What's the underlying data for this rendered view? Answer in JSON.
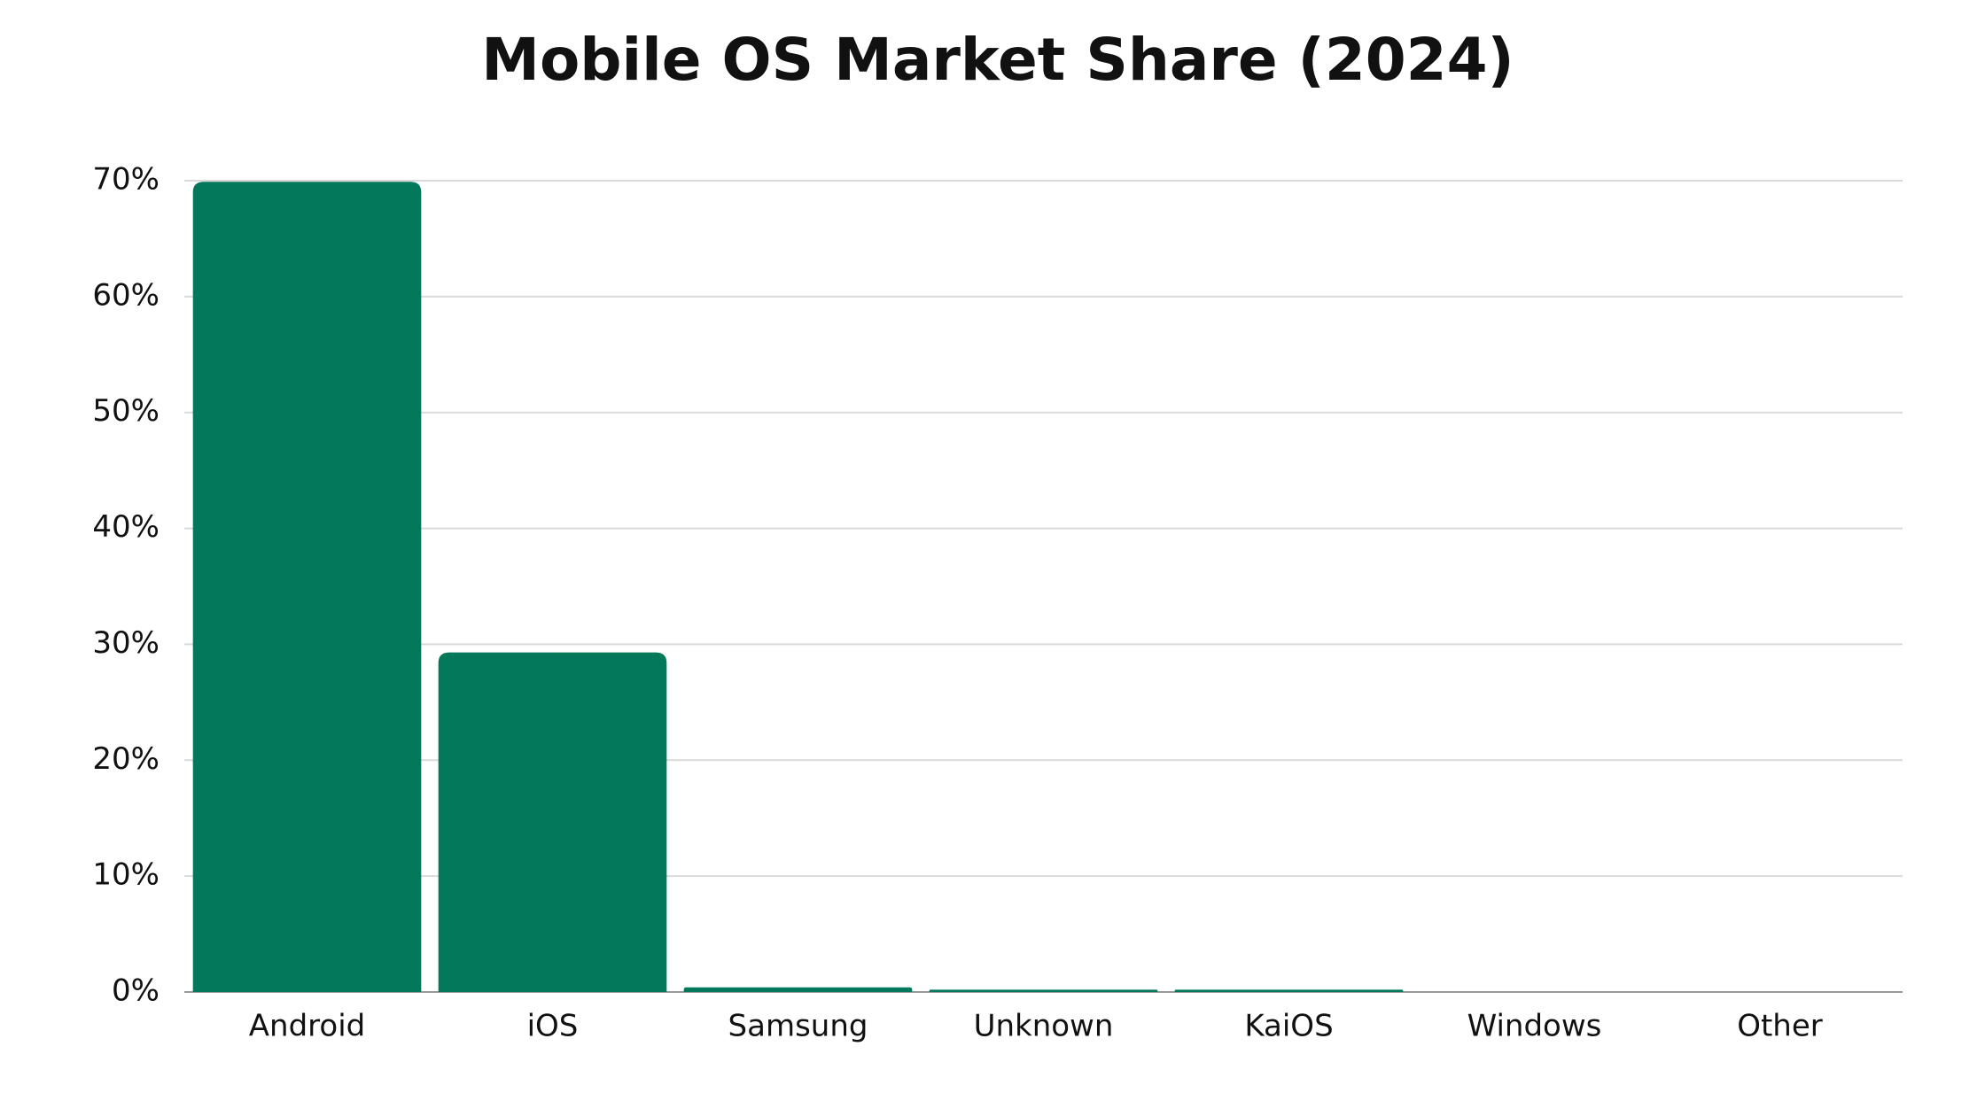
{
  "chart_data": {
    "type": "bar",
    "title": "Mobile OS Market Share (2024)",
    "categories": [
      "Android",
      "iOS",
      "Samsung",
      "Unknown",
      "KaiOS",
      "Windows",
      "Other"
    ],
    "values": [
      69.9,
      29.3,
      0.4,
      0.2,
      0.2,
      0,
      0
    ],
    "color": "#03785a",
    "ylim": [
      0,
      70
    ],
    "yticks": [
      {
        "value": 0,
        "label": "0%"
      },
      {
        "value": 10,
        "label": "10%"
      },
      {
        "value": 20,
        "label": "20%"
      },
      {
        "value": 30,
        "label": "30%"
      },
      {
        "value": 40,
        "label": "40%"
      },
      {
        "value": 50,
        "label": "50%"
      },
      {
        "value": 60,
        "label": "60%"
      },
      {
        "value": 70,
        "label": "70%"
      }
    ],
    "grid": true
  }
}
